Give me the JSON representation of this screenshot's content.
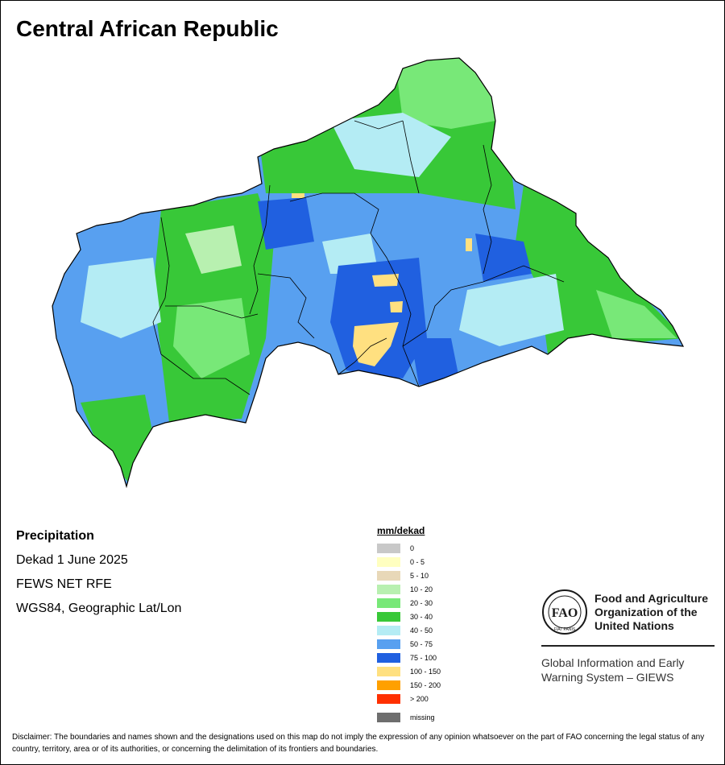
{
  "title": "Central African Republic",
  "map_info": {
    "subject": "Precipitation",
    "period": "Dekad 1 June 2025",
    "source": "FEWS NET RFE",
    "projection": "WGS84, Geographic Lat/Lon"
  },
  "legend": {
    "title": "mm/dekad",
    "classes": [
      {
        "label": "0",
        "color": "#c8c8c8"
      },
      {
        "label": "0 - 5",
        "color": "#ffffc0"
      },
      {
        "label": "5 - 10",
        "color": "#e8d8b8"
      },
      {
        "label": "10 - 20",
        "color": "#b8f0b0"
      },
      {
        "label": "20 - 30",
        "color": "#78e878"
      },
      {
        "label": "30 - 40",
        "color": "#38c838"
      },
      {
        "label": "40 - 50",
        "color": "#b4ecf4"
      },
      {
        "label": "50 - 75",
        "color": "#58a0f0"
      },
      {
        "label": "75 - 100",
        "color": "#2060e0"
      },
      {
        "label": "100 - 150",
        "color": "#ffe080"
      },
      {
        "label": "150 - 200",
        "color": "#ffa000"
      },
      {
        "label": "> 200",
        "color": "#ff3000"
      }
    ],
    "missing": {
      "label": "missing",
      "color": "#6e6e6e"
    }
  },
  "fao": {
    "name": "Food and Agriculture\nOrganization of the\nUnited Nations",
    "logo_text": "FAO",
    "logo_motto": "FIAT PANIS",
    "giews": "Global Information and Early\nWarning System – GIEWS"
  },
  "disclaimer": "Disclaimer: The boundaries and names shown and the designations used on this map do not imply the expression of any opinion whatsoever on the part of FAO concerning the legal status of any country, territory, area or of its authorities, or concerning the delimitation of its frontiers and boundaries."
}
